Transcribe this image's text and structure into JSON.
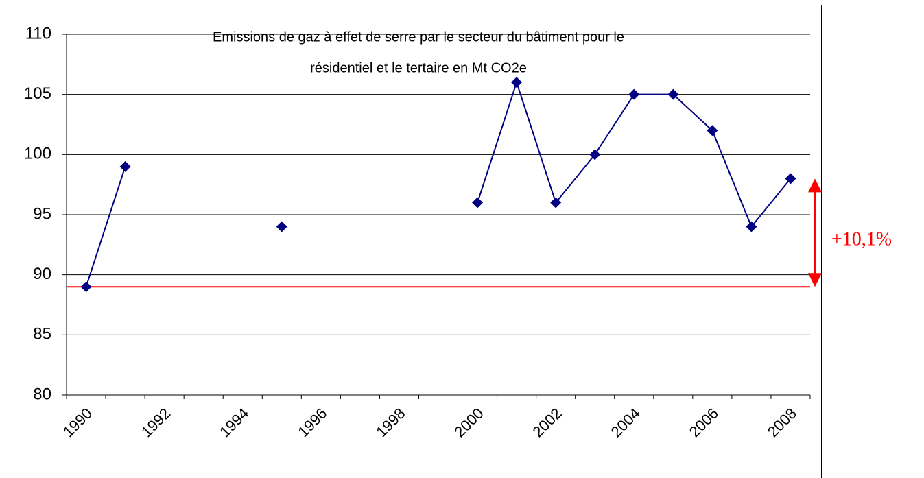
{
  "chart_data": {
    "type": "line",
    "title_lines": [
      "Emissions de gaz à effet de serre par le secteur du bâtiment  pour le",
      "résidentiel et le tertaire en Mt CO2e"
    ],
    "categories": [
      "1990",
      null,
      "1992",
      null,
      "1994",
      null,
      "1996",
      null,
      "1998",
      null,
      "2000",
      null,
      "2002",
      null,
      "2004",
      null,
      "2006",
      null,
      "2008"
    ],
    "series": [
      {
        "name": "Emissions",
        "color": "#000080",
        "values": [
          89,
          99,
          null,
          null,
          null,
          94,
          null,
          null,
          null,
          null,
          96,
          106,
          96,
          100,
          105,
          105,
          102,
          94,
          98
        ]
      }
    ],
    "ylim": [
      80,
      110
    ],
    "yticks": [
      80,
      85,
      90,
      95,
      100,
      105,
      110
    ],
    "grid": true,
    "reference_line": {
      "value": 89,
      "color": "#ff0000"
    },
    "annotation": {
      "text": "+10,1%",
      "from": 89,
      "to": 98,
      "color": "#ff0000"
    }
  }
}
